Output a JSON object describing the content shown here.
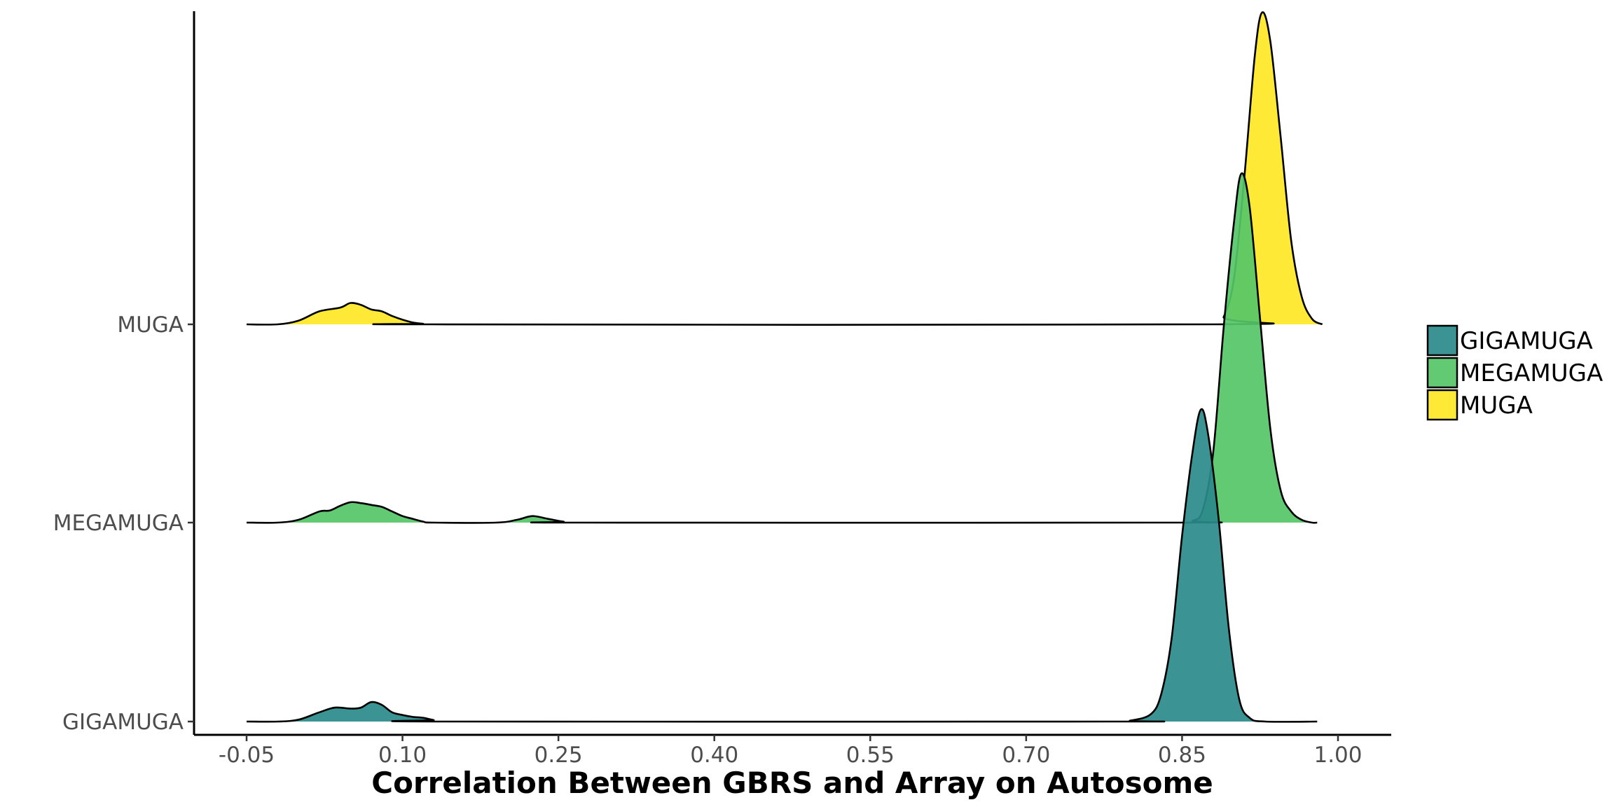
{
  "chart_data": {
    "type": "ridgeline",
    "title": "",
    "xlabel": "Correlation Between GBRS and Array on Autosome",
    "ylabel": "",
    "xlim": [
      -0.05,
      1.0
    ],
    "x_ticks": [
      "-0.05",
      "0.10",
      "0.25",
      "0.40",
      "0.55",
      "0.70",
      "0.85",
      "1.00"
    ],
    "x_tick_values": [
      -0.05,
      0.1,
      0.25,
      0.4,
      0.55,
      0.7,
      0.85,
      1.0
    ],
    "categories": [
      "GIGAMUGA",
      "MEGAMUGA",
      "MUGA"
    ],
    "grid": false,
    "legend_position": "right",
    "series": [
      {
        "name": "GIGAMUGA",
        "color": "#2a8a8a",
        "peak_height": 1.68,
        "density": [
          [
            -0.05,
            0.0
          ],
          [
            -0.02,
            0.0
          ],
          [
            0.0,
            0.01
          ],
          [
            0.02,
            0.05
          ],
          [
            0.035,
            0.075
          ],
          [
            0.05,
            0.07
          ],
          [
            0.06,
            0.075
          ],
          [
            0.07,
            0.105
          ],
          [
            0.08,
            0.09
          ],
          [
            0.09,
            0.05
          ],
          [
            0.1,
            0.035
          ],
          [
            0.11,
            0.025
          ],
          [
            0.12,
            0.02
          ],
          [
            0.13,
            0.008
          ],
          [
            0.14,
            0.0
          ],
          [
            0.78,
            0.0
          ],
          [
            0.8,
            0.005
          ],
          [
            0.82,
            0.04
          ],
          [
            0.83,
            0.15
          ],
          [
            0.84,
            0.45
          ],
          [
            0.85,
            1.0
          ],
          [
            0.86,
            1.45
          ],
          [
            0.868,
            1.68
          ],
          [
            0.875,
            1.55
          ],
          [
            0.885,
            1.1
          ],
          [
            0.895,
            0.5
          ],
          [
            0.905,
            0.12
          ],
          [
            0.915,
            0.02
          ],
          [
            0.93,
            0.0
          ],
          [
            0.98,
            0.0
          ]
        ]
      },
      {
        "name": "MEGAMUGA",
        "color": "#55c667",
        "peak_height": 1.88,
        "density": [
          [
            -0.05,
            0.0
          ],
          [
            -0.02,
            0.0
          ],
          [
            0.0,
            0.015
          ],
          [
            0.02,
            0.06
          ],
          [
            0.03,
            0.065
          ],
          [
            0.04,
            0.09
          ],
          [
            0.05,
            0.11
          ],
          [
            0.06,
            0.105
          ],
          [
            0.07,
            0.095
          ],
          [
            0.08,
            0.085
          ],
          [
            0.09,
            0.06
          ],
          [
            0.1,
            0.035
          ],
          [
            0.11,
            0.02
          ],
          [
            0.12,
            0.005
          ],
          [
            0.13,
            0.0
          ],
          [
            0.19,
            0.0
          ],
          [
            0.21,
            0.015
          ],
          [
            0.225,
            0.035
          ],
          [
            0.24,
            0.02
          ],
          [
            0.255,
            0.005
          ],
          [
            0.27,
            0.0
          ],
          [
            0.84,
            0.0
          ],
          [
            0.86,
            0.01
          ],
          [
            0.87,
            0.07
          ],
          [
            0.88,
            0.38
          ],
          [
            0.89,
            1.05
          ],
          [
            0.9,
            1.62
          ],
          [
            0.907,
            1.88
          ],
          [
            0.915,
            1.7
          ],
          [
            0.925,
            1.1
          ],
          [
            0.935,
            0.5
          ],
          [
            0.945,
            0.17
          ],
          [
            0.955,
            0.06
          ],
          [
            0.965,
            0.015
          ],
          [
            0.975,
            0.0
          ],
          [
            0.98,
            0.0
          ]
        ]
      },
      {
        "name": "MUGA",
        "color": "#fde725",
        "peak_height": 1.68,
        "density": [
          [
            -0.05,
            0.0
          ],
          [
            -0.02,
            0.0
          ],
          [
            0.0,
            0.02
          ],
          [
            0.02,
            0.07
          ],
          [
            0.04,
            0.09
          ],
          [
            0.05,
            0.115
          ],
          [
            0.06,
            0.105
          ],
          [
            0.07,
            0.08
          ],
          [
            0.08,
            0.07
          ],
          [
            0.09,
            0.045
          ],
          [
            0.1,
            0.025
          ],
          [
            0.11,
            0.01
          ],
          [
            0.12,
            0.003
          ],
          [
            0.13,
            0.0
          ],
          [
            0.88,
            0.0
          ],
          [
            0.89,
            0.04
          ],
          [
            0.9,
            0.25
          ],
          [
            0.91,
            0.8
          ],
          [
            0.92,
            1.45
          ],
          [
            0.927,
            1.68
          ],
          [
            0.935,
            1.52
          ],
          [
            0.945,
            1.0
          ],
          [
            0.955,
            0.45
          ],
          [
            0.965,
            0.15
          ],
          [
            0.975,
            0.03
          ],
          [
            0.985,
            0.0
          ]
        ]
      }
    ]
  }
}
